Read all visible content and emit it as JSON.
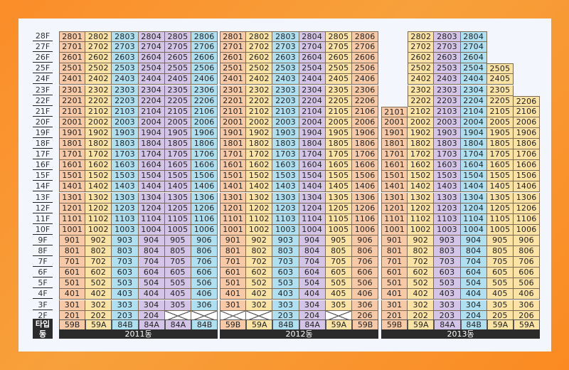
{
  "floors": [
    "28F",
    "27F",
    "26F",
    "25F",
    "24F",
    "23F",
    "22F",
    "21F",
    "20F",
    "19F",
    "18F",
    "17F",
    "16F",
    "15F",
    "14F",
    "13F",
    "12F",
    "11F",
    "10F",
    "9F",
    "8F",
    "7F",
    "6F",
    "5F",
    "4F",
    "3F",
    "2F",
    "1F"
  ],
  "legend": {
    "type_label": "타입",
    "building_label": "동"
  },
  "type_colors": {
    "59B": "#f8c9a6",
    "59A": "#fbe3a6",
    "84B": "#aee0f2",
    "84A": "#d3c4e8"
  },
  "buildings": [
    {
      "name": "2011동",
      "types": [
        "59B",
        "59A",
        "84B",
        "84A",
        "84A",
        "84B"
      ],
      "cols": [
        {
          "min": 1,
          "max": 28,
          "missing": []
        },
        {
          "min": 1,
          "max": 28,
          "missing": [
            1
          ]
        },
        {
          "min": 1,
          "max": 28,
          "missing": [
            1
          ]
        },
        {
          "min": 1,
          "max": 28,
          "missing": []
        },
        {
          "min": 1,
          "max": 28,
          "missing": [
            1,
            2
          ]
        },
        {
          "min": 1,
          "max": 28,
          "missing": [
            1,
            2
          ]
        }
      ]
    },
    {
      "name": "2012동",
      "types": [
        "59B",
        "59A",
        "84B",
        "84A",
        "59A",
        "59B"
      ],
      "cols": [
        {
          "min": 1,
          "max": 28,
          "missing": [
            1,
            2
          ]
        },
        {
          "min": 1,
          "max": 28,
          "missing": [
            1,
            2
          ]
        },
        {
          "min": 1,
          "max": 28,
          "missing": [
            1
          ]
        },
        {
          "min": 1,
          "max": 28,
          "missing": []
        },
        {
          "min": 1,
          "max": 28,
          "missing": [
            1,
            2
          ]
        },
        {
          "min": 1,
          "max": 28,
          "missing": []
        }
      ]
    },
    {
      "name": "2013동",
      "types": [
        "59B",
        "59A",
        "84A",
        "84B",
        "59A",
        "59A"
      ],
      "cols": [
        {
          "min": 1,
          "max": 21,
          "missing": []
        },
        {
          "min": 1,
          "max": 28,
          "missing": [
            1
          ]
        },
        {
          "min": 1,
          "max": 28,
          "missing": []
        },
        {
          "min": 1,
          "max": 28,
          "missing": [
            1
          ]
        },
        {
          "min": 1,
          "max": 25,
          "missing": []
        },
        {
          "min": 1,
          "max": 22,
          "missing": [
            1
          ]
        }
      ]
    }
  ]
}
